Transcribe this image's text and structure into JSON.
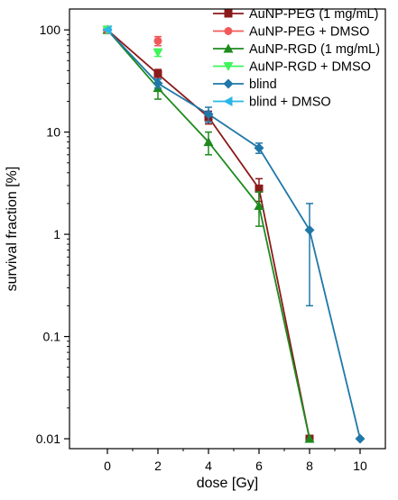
{
  "chart_data": {
    "type": "line",
    "title": "",
    "xlabel": "dose [Gy]",
    "ylabel": "survival fraction [%]",
    "xlim": [
      -1.5,
      11
    ],
    "ylim": [
      0.008,
      160
    ],
    "y_scale": "log",
    "x_ticks": [
      0,
      2,
      4,
      6,
      8,
      10
    ],
    "x_tick_labels": [
      "0",
      "2",
      "4",
      "6",
      "8",
      "10"
    ],
    "y_ticks": [
      100,
      10,
      1,
      0.1,
      0.01
    ],
    "y_tick_labels": [
      "100",
      "10",
      "1",
      "0.1",
      "0.01"
    ],
    "grid": false,
    "legend_position": "top-right",
    "series": [
      {
        "name": "AuNP-PEG (1 mg/mL)",
        "color": "#8b1a1a",
        "marker": "square",
        "line": true,
        "points": [
          {
            "x": 0,
            "y": 100,
            "err_low": 0,
            "err_high": 0
          },
          {
            "x": 2,
            "y": 37,
            "err_low": 4,
            "err_high": 4
          },
          {
            "x": 4,
            "y": 14,
            "err_low": 2,
            "err_high": 2
          },
          {
            "x": 6,
            "y": 2.8,
            "err_low": 0.7,
            "err_high": 0.7
          },
          {
            "x": 8,
            "y": 0.01,
            "err_low": 0,
            "err_high": 0
          }
        ]
      },
      {
        "name": "AuNP-PEG + DMSO",
        "color": "#f05a5a",
        "marker": "circle",
        "line": false,
        "points": [
          {
            "x": 0,
            "y": 100,
            "err_low": 0,
            "err_high": 0
          },
          {
            "x": 2,
            "y": 78,
            "err_low": 8,
            "err_high": 8
          }
        ]
      },
      {
        "name": "AuNP-RGD (1 mg/mL)",
        "color": "#1e8a1e",
        "marker": "triangle-up",
        "line": true,
        "points": [
          {
            "x": 0,
            "y": 100,
            "err_low": 0,
            "err_high": 0
          },
          {
            "x": 2,
            "y": 27,
            "err_low": 6,
            "err_high": 6
          },
          {
            "x": 4,
            "y": 8,
            "err_low": 2,
            "err_high": 2
          },
          {
            "x": 6,
            "y": 1.9,
            "err_low": 0.7,
            "err_high": 0.7
          },
          {
            "x": 8,
            "y": 0.01,
            "err_low": 0,
            "err_high": 0
          }
        ]
      },
      {
        "name": "AuNP-RGD + DMSO",
        "color": "#3ef55a",
        "marker": "triangle-down",
        "line": false,
        "points": [
          {
            "x": 0,
            "y": 100,
            "err_low": 0,
            "err_high": 0
          },
          {
            "x": 2,
            "y": 60,
            "err_low": 5,
            "err_high": 5
          }
        ]
      },
      {
        "name": "blind",
        "color": "#1f78a8",
        "marker": "diamond",
        "line": true,
        "points": [
          {
            "x": 0,
            "y": 100,
            "err_low": 0,
            "err_high": 0
          },
          {
            "x": 2,
            "y": 30,
            "err_low": 3,
            "err_high": 3
          },
          {
            "x": 4,
            "y": 15,
            "err_low": 2.5,
            "err_high": 2.5
          },
          {
            "x": 6,
            "y": 7,
            "err_low": 0.8,
            "err_high": 0.8
          },
          {
            "x": 8,
            "y": 1.1,
            "err_low": 0.9,
            "err_high": 0.9
          },
          {
            "x": 10,
            "y": 0.01,
            "err_low": 0,
            "err_high": 0
          }
        ]
      },
      {
        "name": "blind + DMSO",
        "color": "#29b6e8",
        "marker": "triangle-left",
        "line": false,
        "points": [
          {
            "x": 0,
            "y": 100,
            "err_low": 0,
            "err_high": 0
          }
        ]
      }
    ]
  }
}
